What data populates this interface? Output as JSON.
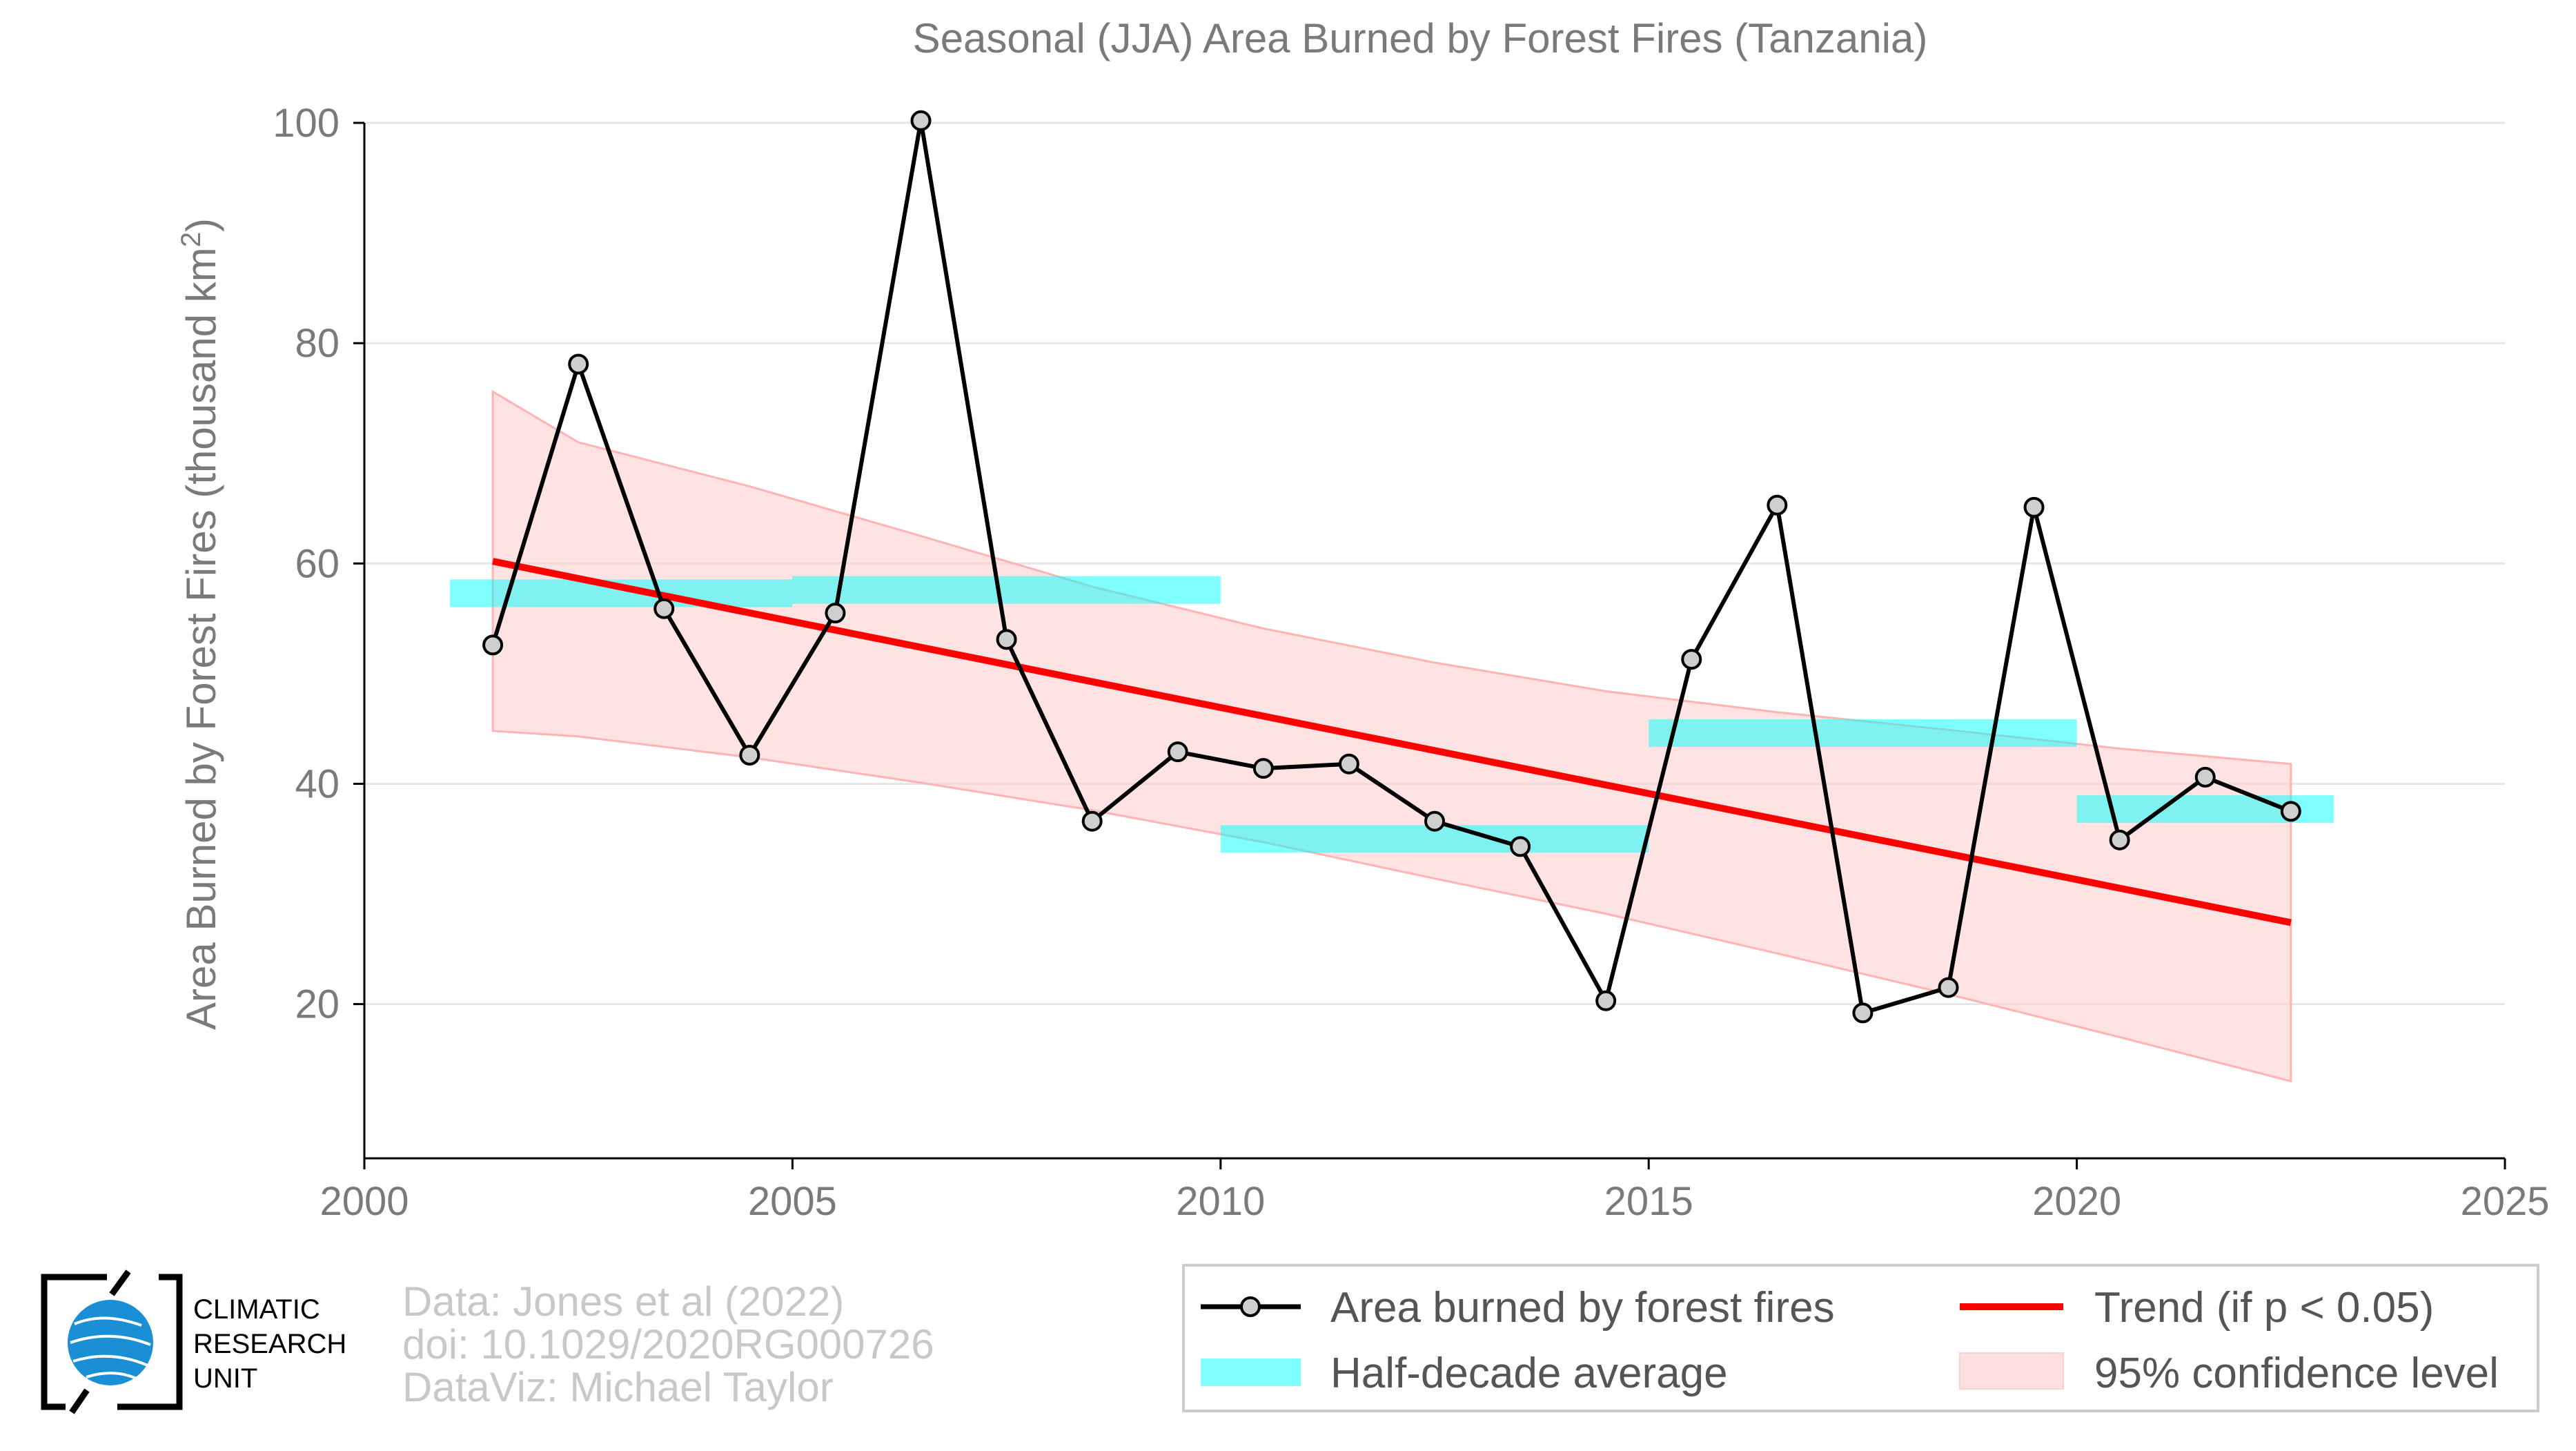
{
  "chart_data": {
    "type": "line",
    "title": "Seasonal (JJA) Area Burned by Forest Fires (Tanzania)",
    "xlabel": "",
    "ylabel": "Area Burned by Forest Fires (thousand km",
    "ylabel_sup": "2",
    "ylabel_close": ")",
    "xlim": [
      2000,
      2025
    ],
    "ylim": [
      6,
      100
    ],
    "x_ticks": [
      2000,
      2005,
      2010,
      2015,
      2020,
      2025
    ],
    "y_ticks": [
      20,
      40,
      60,
      80,
      100
    ],
    "grid": "horizontal",
    "legend_position": "bottom-right",
    "series": [
      {
        "name": "Area burned by forest fires",
        "color": "#000000",
        "marker_fill": "#cfcfcf",
        "x": [
          2001.5,
          2002.5,
          2003.5,
          2004.5,
          2005.5,
          2006.5,
          2007.5,
          2008.5,
          2009.5,
          2010.5,
          2011.5,
          2012.5,
          2013.5,
          2014.5,
          2015.5,
          2016.5,
          2017.5,
          2018.5,
          2019.5,
          2020.5,
          2021.5,
          2022.5
        ],
        "values": [
          52.6,
          78.1,
          55.9,
          42.6,
          55.5,
          100.2,
          53.1,
          36.6,
          42.9,
          41.4,
          41.8,
          36.6,
          34.3,
          20.3,
          51.3,
          65.3,
          19.2,
          21.5,
          65.1,
          34.9,
          40.6,
          37.5
        ]
      },
      {
        "name": "Half-decade average",
        "color": "#00ffff",
        "segments": [
          {
            "x_start": 2001,
            "x_end": 2005,
            "value": 57.3
          },
          {
            "x_start": 2005,
            "x_end": 2010,
            "value": 57.6
          },
          {
            "x_start": 2010,
            "x_end": 2015,
            "value": 35.0
          },
          {
            "x_start": 2015,
            "x_end": 2020,
            "value": 44.6
          },
          {
            "x_start": 2020,
            "x_end": 2023,
            "value": 37.7
          }
        ]
      },
      {
        "name": "Trend (if p < 0.05)",
        "color": "#ff0000",
        "x": [
          2001.5,
          2022.5
        ],
        "values": [
          60.2,
          27.4
        ]
      },
      {
        "name": "95% confidence level",
        "color": "#ffcccc",
        "x": [
          2001.5,
          2002.5,
          2004.5,
          2006.5,
          2008.5,
          2010.5,
          2012.5,
          2014.5,
          2016.5,
          2018.5,
          2020.5,
          2022.5
        ],
        "upper": [
          75.6,
          71.0,
          67.0,
          62.5,
          57.9,
          54.1,
          51.0,
          48.4,
          46.5,
          44.9,
          43.2,
          41.8
        ],
        "lower": [
          44.8,
          44.3,
          42.4,
          40.1,
          37.6,
          34.7,
          31.4,
          28.2,
          24.6,
          20.9,
          17.0,
          13.0
        ]
      }
    ]
  },
  "legend": {
    "items": [
      {
        "label": "Area burned by forest fires"
      },
      {
        "label": "Trend (if p < 0.05)"
      },
      {
        "label": "Half-decade average"
      },
      {
        "label": "95% confidence level"
      }
    ]
  },
  "credits": {
    "line1": "Data: Jones et al (2022)",
    "line2": "doi: 10.1029/2020RG000726",
    "line3": "DataViz: Michael Taylor"
  },
  "logo": {
    "line1": "CLIMATIC",
    "line2": "RESEARCH",
    "line3": "UNIT"
  }
}
